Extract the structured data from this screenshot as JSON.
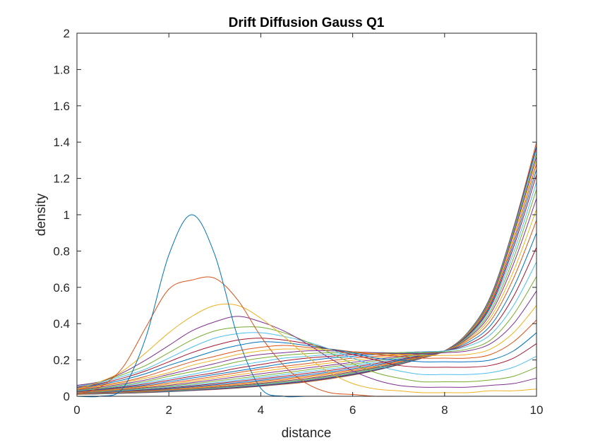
{
  "chart_data": {
    "type": "line",
    "title": "Drift Diffusion Gauss Q1",
    "xlabel": "distance",
    "ylabel": "density",
    "xlim": [
      0,
      10
    ],
    "ylim": [
      0,
      2
    ],
    "xticks": [
      "0",
      "2",
      "4",
      "6",
      "8",
      "10"
    ],
    "yticks": [
      "0",
      "0.2",
      "0.4",
      "0.6",
      "0.8",
      "1",
      "1.2",
      "1.4",
      "1.6",
      "1.8",
      "2"
    ],
    "grid": false,
    "legend": "none",
    "series_count": 30,
    "x": [
      0,
      0.5,
      1,
      1.5,
      2,
      2.5,
      3,
      3.5,
      4,
      4.5,
      5,
      5.5,
      6,
      6.5,
      7,
      7.5,
      8,
      8.5,
      9,
      9.5,
      10
    ],
    "series": [
      {
        "values": [
          0.0,
          0.0,
          0.044,
          0.325,
          0.779,
          1.0,
          0.779,
          0.325,
          0.044,
          0.0,
          0.0,
          0.0,
          0.0,
          0.0,
          0.0,
          0.0,
          0.0,
          0.0,
          0.0,
          0.0,
          0.0
        ]
      },
      {
        "values": [
          0.01,
          0.05,
          0.16,
          0.38,
          0.59,
          0.64,
          0.65,
          0.53,
          0.33,
          0.17,
          0.07,
          0.02,
          0.01,
          0.0,
          0.0,
          0.0,
          0.0,
          0.0,
          0.0,
          0.0,
          0.0
        ]
      },
      {
        "values": [
          0.04,
          0.08,
          0.14,
          0.24,
          0.35,
          0.44,
          0.5,
          0.5,
          0.43,
          0.33,
          0.22,
          0.13,
          0.07,
          0.04,
          0.03,
          0.02,
          0.02,
          0.02,
          0.03,
          0.03,
          0.04
        ]
      },
      {
        "values": [
          0.06,
          0.08,
          0.13,
          0.2,
          0.28,
          0.36,
          0.41,
          0.44,
          0.41,
          0.36,
          0.29,
          0.21,
          0.14,
          0.09,
          0.06,
          0.05,
          0.05,
          0.05,
          0.06,
          0.07,
          0.1
        ]
      },
      {
        "values": [
          0.06,
          0.08,
          0.12,
          0.17,
          0.24,
          0.31,
          0.36,
          0.38,
          0.38,
          0.35,
          0.3,
          0.24,
          0.18,
          0.13,
          0.1,
          0.08,
          0.08,
          0.08,
          0.09,
          0.11,
          0.16
        ]
      },
      {
        "values": [
          0.055,
          0.075,
          0.11,
          0.15,
          0.21,
          0.27,
          0.32,
          0.345,
          0.35,
          0.33,
          0.3,
          0.26,
          0.21,
          0.17,
          0.14,
          0.12,
          0.12,
          0.12,
          0.13,
          0.16,
          0.22
        ]
      },
      {
        "values": [
          0.05,
          0.07,
          0.1,
          0.14,
          0.19,
          0.24,
          0.28,
          0.31,
          0.32,
          0.31,
          0.29,
          0.26,
          0.23,
          0.2,
          0.17,
          0.16,
          0.16,
          0.16,
          0.17,
          0.21,
          0.29
        ]
      },
      {
        "values": [
          0.045,
          0.065,
          0.09,
          0.125,
          0.17,
          0.21,
          0.25,
          0.28,
          0.3,
          0.295,
          0.28,
          0.26,
          0.24,
          0.21,
          0.2,
          0.19,
          0.19,
          0.19,
          0.2,
          0.25,
          0.35
        ]
      },
      {
        "values": [
          0.04,
          0.06,
          0.08,
          0.11,
          0.15,
          0.19,
          0.22,
          0.25,
          0.27,
          0.28,
          0.27,
          0.26,
          0.245,
          0.23,
          0.22,
          0.21,
          0.21,
          0.21,
          0.23,
          0.3,
          0.42
        ]
      },
      {
        "values": [
          0.038,
          0.055,
          0.075,
          0.1,
          0.13,
          0.17,
          0.2,
          0.23,
          0.25,
          0.26,
          0.26,
          0.255,
          0.245,
          0.235,
          0.23,
          0.225,
          0.225,
          0.23,
          0.26,
          0.35,
          0.5
        ]
      },
      {
        "values": [
          0.035,
          0.05,
          0.068,
          0.09,
          0.12,
          0.15,
          0.18,
          0.21,
          0.23,
          0.24,
          0.25,
          0.25,
          0.245,
          0.24,
          0.235,
          0.235,
          0.24,
          0.25,
          0.29,
          0.4,
          0.58
        ]
      },
      {
        "values": [
          0.033,
          0.045,
          0.062,
          0.082,
          0.11,
          0.135,
          0.16,
          0.19,
          0.21,
          0.225,
          0.235,
          0.24,
          0.24,
          0.24,
          0.24,
          0.24,
          0.245,
          0.26,
          0.31,
          0.45,
          0.66
        ]
      },
      {
        "values": [
          0.03,
          0.042,
          0.057,
          0.075,
          0.097,
          0.12,
          0.145,
          0.17,
          0.19,
          0.21,
          0.22,
          0.23,
          0.235,
          0.24,
          0.24,
          0.245,
          0.25,
          0.275,
          0.34,
          0.5,
          0.74
        ]
      },
      {
        "values": [
          0.028,
          0.039,
          0.052,
          0.068,
          0.088,
          0.11,
          0.13,
          0.155,
          0.175,
          0.195,
          0.21,
          0.22,
          0.23,
          0.235,
          0.24,
          0.245,
          0.25,
          0.285,
          0.365,
          0.55,
          0.82
        ]
      },
      {
        "values": [
          0.026,
          0.036,
          0.048,
          0.062,
          0.08,
          0.1,
          0.12,
          0.14,
          0.16,
          0.18,
          0.195,
          0.21,
          0.22,
          0.23,
          0.235,
          0.24,
          0.25,
          0.295,
          0.39,
          0.6,
          0.9
        ]
      },
      {
        "values": [
          0.024,
          0.033,
          0.044,
          0.057,
          0.073,
          0.09,
          0.11,
          0.13,
          0.15,
          0.165,
          0.18,
          0.195,
          0.21,
          0.22,
          0.23,
          0.24,
          0.25,
          0.305,
          0.415,
          0.65,
          0.97
        ]
      },
      {
        "values": [
          0.022,
          0.03,
          0.04,
          0.052,
          0.066,
          0.082,
          0.1,
          0.118,
          0.136,
          0.153,
          0.168,
          0.183,
          0.198,
          0.212,
          0.225,
          0.238,
          0.25,
          0.312,
          0.435,
          0.69,
          1.03
        ]
      },
      {
        "values": [
          0.02,
          0.028,
          0.037,
          0.048,
          0.06,
          0.075,
          0.091,
          0.108,
          0.124,
          0.14,
          0.156,
          0.171,
          0.187,
          0.203,
          0.219,
          0.235,
          0.25,
          0.318,
          0.455,
          0.73,
          1.09
        ]
      },
      {
        "values": [
          0.019,
          0.026,
          0.034,
          0.044,
          0.055,
          0.068,
          0.083,
          0.098,
          0.113,
          0.129,
          0.145,
          0.161,
          0.177,
          0.195,
          0.213,
          0.232,
          0.25,
          0.324,
          0.47,
          0.76,
          1.14
        ]
      },
      {
        "values": [
          0.018,
          0.024,
          0.031,
          0.04,
          0.05,
          0.062,
          0.075,
          0.089,
          0.104,
          0.119,
          0.135,
          0.151,
          0.168,
          0.187,
          0.207,
          0.229,
          0.25,
          0.328,
          0.485,
          0.79,
          1.18
        ]
      },
      {
        "values": [
          0.017,
          0.022,
          0.029,
          0.037,
          0.046,
          0.057,
          0.069,
          0.082,
          0.096,
          0.11,
          0.126,
          0.142,
          0.16,
          0.18,
          0.202,
          0.226,
          0.25,
          0.332,
          0.495,
          0.82,
          1.22
        ]
      },
      {
        "values": [
          0.016,
          0.021,
          0.027,
          0.034,
          0.042,
          0.052,
          0.063,
          0.075,
          0.088,
          0.102,
          0.117,
          0.134,
          0.152,
          0.173,
          0.197,
          0.223,
          0.25,
          0.336,
          0.505,
          0.84,
          1.25
        ]
      },
      {
        "values": [
          0.015,
          0.019,
          0.025,
          0.031,
          0.039,
          0.048,
          0.058,
          0.069,
          0.082,
          0.095,
          0.11,
          0.127,
          0.146,
          0.167,
          0.193,
          0.22,
          0.25,
          0.339,
          0.515,
          0.86,
          1.28
        ]
      },
      {
        "values": [
          0.014,
          0.018,
          0.023,
          0.029,
          0.036,
          0.044,
          0.054,
          0.064,
          0.076,
          0.089,
          0.104,
          0.121,
          0.14,
          0.162,
          0.189,
          0.218,
          0.25,
          0.342,
          0.523,
          0.88,
          1.3
        ]
      },
      {
        "values": [
          0.013,
          0.017,
          0.021,
          0.027,
          0.033,
          0.041,
          0.05,
          0.06,
          0.071,
          0.084,
          0.098,
          0.115,
          0.135,
          0.158,
          0.185,
          0.216,
          0.25,
          0.344,
          0.53,
          0.895,
          1.32
        ]
      },
      {
        "values": [
          0.012,
          0.016,
          0.02,
          0.025,
          0.031,
          0.038,
          0.047,
          0.056,
          0.067,
          0.079,
          0.093,
          0.11,
          0.13,
          0.154,
          0.182,
          0.214,
          0.25,
          0.346,
          0.536,
          0.905,
          1.34
        ]
      },
      {
        "values": [
          0.012,
          0.015,
          0.019,
          0.024,
          0.029,
          0.036,
          0.044,
          0.053,
          0.063,
          0.075,
          0.089,
          0.106,
          0.126,
          0.15,
          0.179,
          0.213,
          0.25,
          0.348,
          0.541,
          0.915,
          1.36
        ]
      },
      {
        "values": [
          0.011,
          0.014,
          0.018,
          0.022,
          0.028,
          0.034,
          0.041,
          0.05,
          0.06,
          0.072,
          0.085,
          0.102,
          0.122,
          0.147,
          0.177,
          0.211,
          0.25,
          0.349,
          0.545,
          0.92,
          1.37
        ]
      },
      {
        "values": [
          0.011,
          0.013,
          0.017,
          0.021,
          0.026,
          0.032,
          0.039,
          0.047,
          0.057,
          0.069,
          0.082,
          0.099,
          0.119,
          0.144,
          0.175,
          0.21,
          0.25,
          0.35,
          0.548,
          0.925,
          1.38
        ]
      },
      {
        "values": [
          0.01,
          0.013,
          0.016,
          0.02,
          0.025,
          0.031,
          0.037,
          0.045,
          0.055,
          0.066,
          0.079,
          0.096,
          0.116,
          0.142,
          0.173,
          0.209,
          0.25,
          0.351,
          0.551,
          0.93,
          1.4
        ]
      }
    ],
    "colors": [
      "#0072bd",
      "#d95319",
      "#edb120",
      "#7e2f8e",
      "#77ac30",
      "#4dbeee",
      "#a2142f"
    ]
  }
}
